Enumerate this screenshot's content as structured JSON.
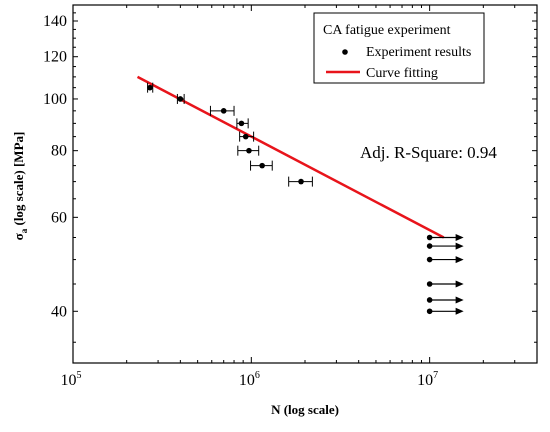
{
  "chart_data": {
    "type": "scatter",
    "title": "",
    "xlabel": "N (log scale)",
    "ylabel": "σa (log scale) [MPa]",
    "ylabel_main": "σ",
    "ylabel_sub": "a",
    "ylabel_rest": " (log scale) [MPa]",
    "x_scale": "log",
    "y_scale": "log",
    "xlim": [
      100000,
      40000000
    ],
    "ylim": [
      32,
      150
    ],
    "x_ticks": [
      {
        "value": 100000,
        "base": "10",
        "exp": "5"
      },
      {
        "value": 1000000,
        "base": "10",
        "exp": "6"
      },
      {
        "value": 10000000,
        "base": "10",
        "exp": "7"
      }
    ],
    "y_ticks": [
      {
        "value": 40,
        "label": "40"
      },
      {
        "value": 60,
        "label": "60"
      },
      {
        "value": 80,
        "label": "80"
      },
      {
        "value": 100,
        "label": "100"
      },
      {
        "value": 120,
        "label": "120"
      },
      {
        "value": 140,
        "label": "140"
      }
    ],
    "grid": false,
    "legend": {
      "placement": "top-right",
      "title": "CA fatigue experiment",
      "entries": [
        {
          "label": "Experiment results",
          "marker": "dot",
          "color": "#000000"
        },
        {
          "label": "Curve fitting",
          "marker": "line",
          "color": "#e8141b"
        }
      ]
    },
    "annotations": [
      {
        "text": "Adj. R-Square: 0.94"
      }
    ],
    "series": [
      {
        "name": "Experiment results",
        "color": "#000000",
        "points": [
          {
            "x": 270000,
            "y": 105,
            "xerr_low": 262000,
            "xerr_high": 280000
          },
          {
            "x": 400000,
            "y": 100,
            "xerr_low": 385000,
            "xerr_high": 420000
          },
          {
            "x": 700000,
            "y": 95,
            "xerr_low": 590000,
            "xerr_high": 800000
          },
          {
            "x": 880000,
            "y": 90,
            "xerr_low": 830000,
            "xerr_high": 960000
          },
          {
            "x": 930000,
            "y": 85,
            "xerr_low": 860000,
            "xerr_high": 1030000
          },
          {
            "x": 970000,
            "y": 80,
            "xerr_low": 840000,
            "xerr_high": 1100000
          },
          {
            "x": 1150000,
            "y": 75,
            "xerr_low": 990000,
            "xerr_high": 1310000
          },
          {
            "x": 1900000,
            "y": 70,
            "xerr_low": 1620000,
            "xerr_high": 2200000
          }
        ],
        "runouts": [
          {
            "x": 10000000,
            "y": 55
          },
          {
            "x": 10000000,
            "y": 53
          },
          {
            "x": 10000000,
            "y": 50
          },
          {
            "x": 10000000,
            "y": 45
          },
          {
            "x": 10000000,
            "y": 42
          },
          {
            "x": 10000000,
            "y": 40
          }
        ]
      },
      {
        "name": "Curve fitting",
        "color": "#e8141b",
        "type": "line",
        "points": [
          {
            "x": 230000,
            "y": 110
          },
          {
            "x": 12000000,
            "y": 55
          }
        ]
      }
    ]
  }
}
